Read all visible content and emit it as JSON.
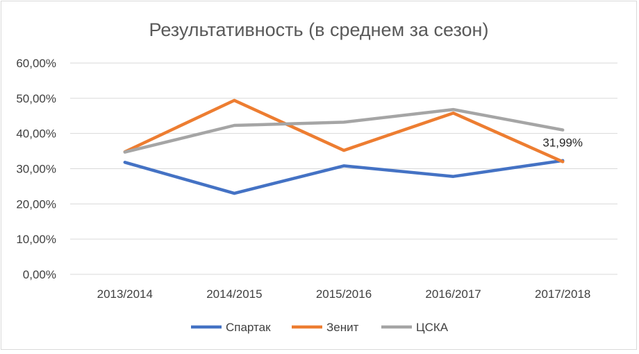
{
  "chart_data": {
    "type": "line",
    "title": "Результативность (в среднем за сезон)",
    "categories": [
      "2013/2014",
      "2014/2015",
      "2015/2016",
      "2016/2017",
      "2017/2018"
    ],
    "y_ticks": [
      "0,00%",
      "10,00%",
      "20,00%",
      "30,00%",
      "40,00%",
      "50,00%",
      "60,00%"
    ],
    "ylim": [
      0,
      60
    ],
    "grid": true,
    "legend_position": "bottom",
    "series": [
      {
        "name": "Спартак",
        "color": "#4472C4",
        "values": [
          31.8,
          23.0,
          30.8,
          27.8,
          32.3
        ]
      },
      {
        "name": "Зенит",
        "color": "#ED7D31",
        "values": [
          34.8,
          49.4,
          35.2,
          45.8,
          31.99
        ]
      },
      {
        "name": "ЦСКА",
        "color": "#A5A5A5",
        "values": [
          34.7,
          42.3,
          43.2,
          46.8,
          41.0
        ]
      }
    ],
    "annotations": [
      {
        "series": "Зенит",
        "category": "2017/2018",
        "text": "31,99%"
      }
    ]
  }
}
